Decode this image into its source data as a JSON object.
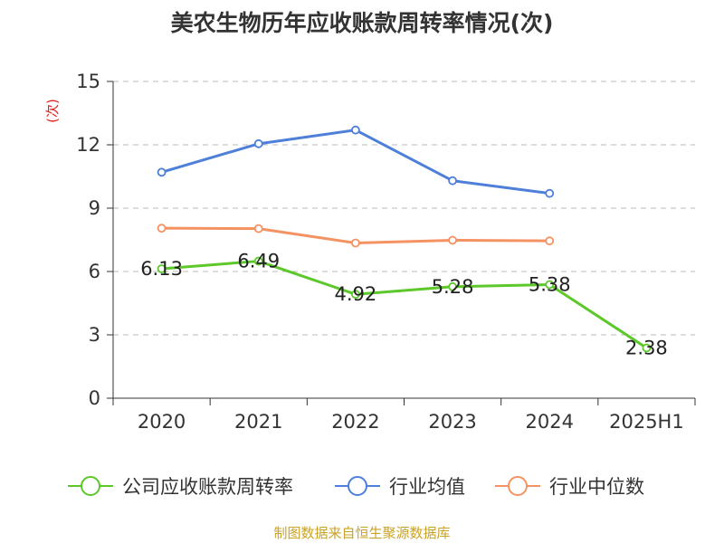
{
  "chart_data": {
    "type": "line",
    "title": "美农生物历年应收账款周转率情况(次)",
    "ylabel": "(次)",
    "xlabel": "",
    "categories": [
      "2020",
      "2021",
      "2022",
      "2023",
      "2024",
      "2025H1"
    ],
    "ylim": [
      0,
      15
    ],
    "yticks": [
      0,
      3,
      6,
      9,
      12,
      15
    ],
    "grid": true,
    "legend_position": "bottom",
    "series": [
      {
        "name": "公司应收账款周转率",
        "color": "#5cc82a",
        "values": [
          6.13,
          6.49,
          4.92,
          5.28,
          5.38,
          2.38
        ],
        "labels": [
          "6.13",
          "6.49",
          "4.92",
          "5.28",
          "5.38",
          "2.38"
        ]
      },
      {
        "name": "行业均值",
        "color": "#4e7fd9",
        "values": [
          10.7,
          12.05,
          12.7,
          10.3,
          9.7,
          null
        ]
      },
      {
        "name": "行业中位数",
        "color": "#f59262",
        "values": [
          8.05,
          8.03,
          7.35,
          7.48,
          7.45,
          null
        ]
      }
    ]
  },
  "footer": {
    "source": "制图数据来自恒生聚源数据库"
  }
}
